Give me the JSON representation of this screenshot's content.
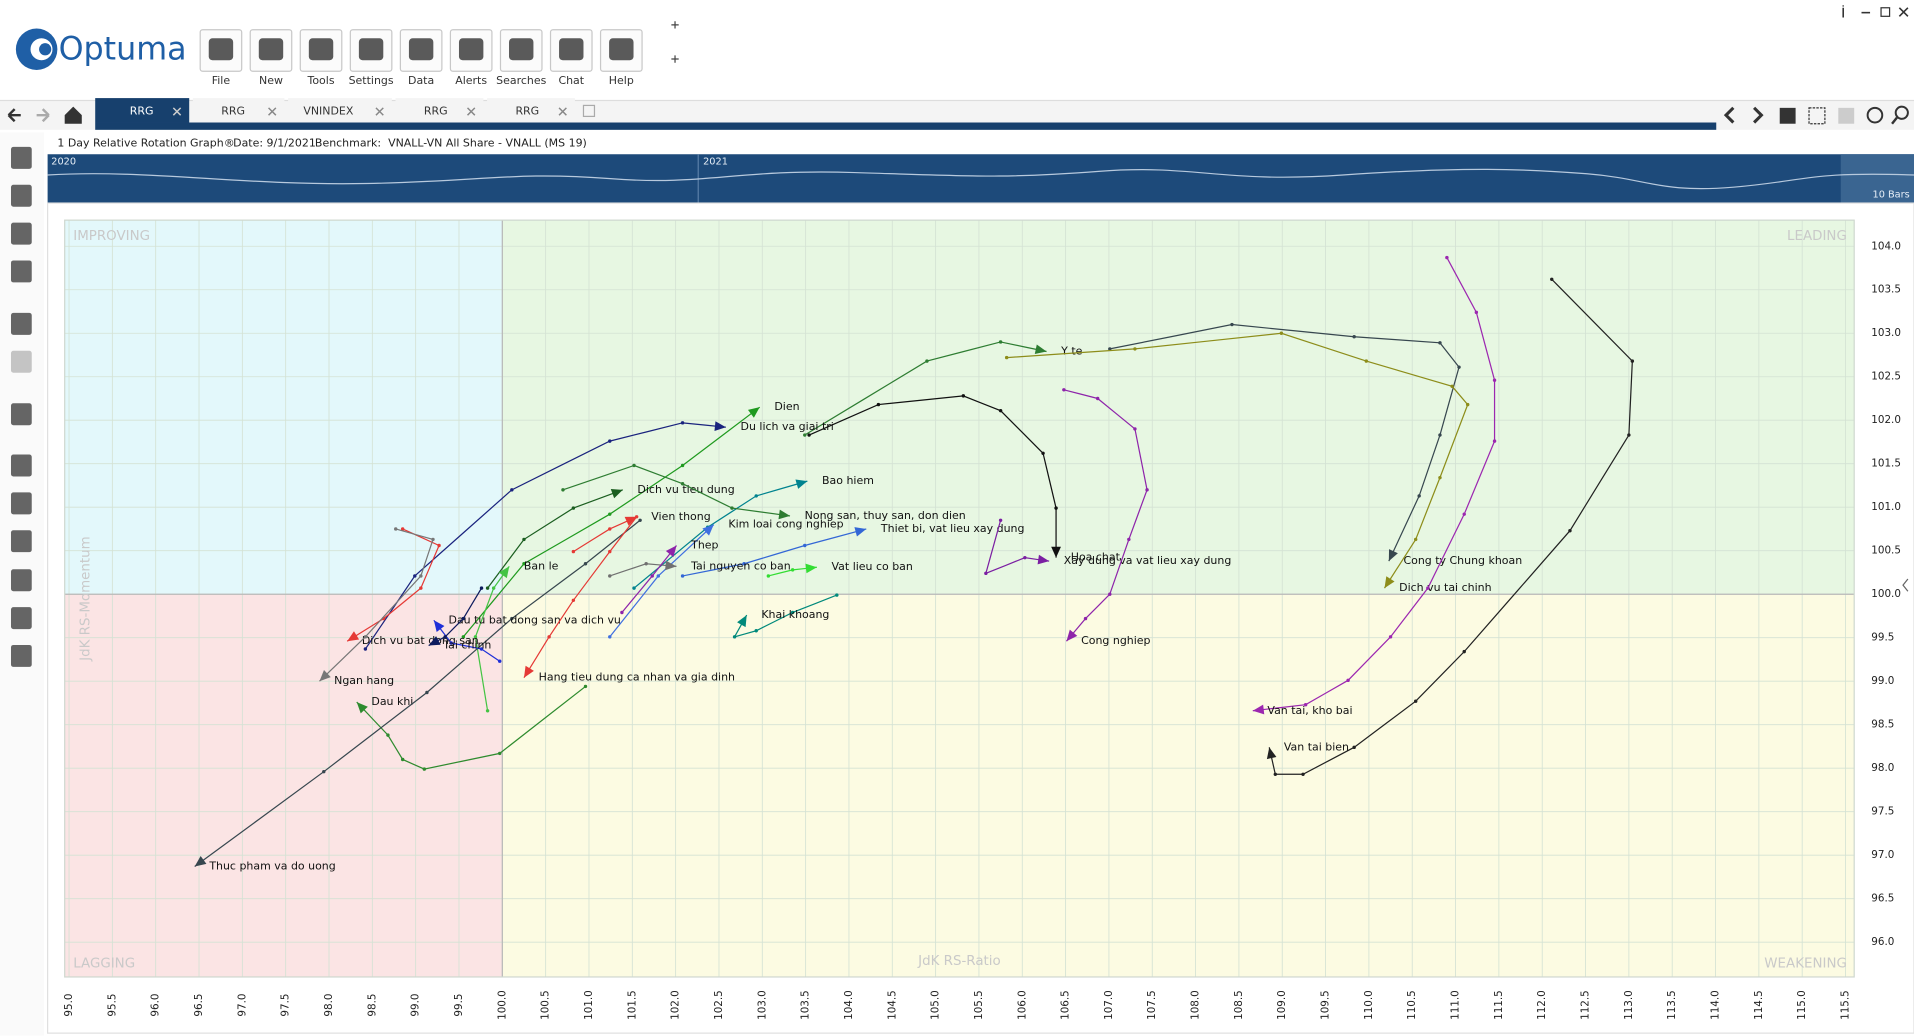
{
  "app": {
    "logo": "Optuma",
    "toolbar": [
      "File",
      "New",
      "Tools",
      "Settings",
      "Data",
      "Alerts",
      "Searches",
      "Chat",
      "Help"
    ],
    "tabs": [
      "RRG",
      "RRG",
      "VNINDEX",
      "RRG",
      "RRG"
    ],
    "info": {
      "title": "1 Day Relative Rotation Graph®",
      "date": "Date: 9/1/2021",
      "benchmark": "Benchmark:  VNALL-VN All Share - VNALL (MS 19)"
    },
    "navigator": {
      "years": [
        "2020",
        "2021"
      ],
      "bars": "10 Bars"
    }
  },
  "chart_data": {
    "type": "rrg",
    "xlabel": "JdK RS-Ratio",
    "ylabel": "JdK RS-Momentum",
    "quadrants": {
      "improving": "IMPROVING",
      "leading": "LEADING",
      "lagging": "LAGGING",
      "weakening": "WEAKENING"
    },
    "grid": true,
    "xlim": [
      94.95,
      115.6
    ],
    "ylim": [
      95.6,
      104.3
    ],
    "xticks": [
      {
        "value": 95,
        "label": "95.0"
      },
      95.5,
      {
        "value": 96,
        "label": "96.0"
      },
      96.5,
      {
        "value": 97,
        "label": "97.0"
      },
      97.5,
      {
        "value": 98,
        "label": "98.0"
      },
      98.5,
      {
        "value": 99,
        "label": "99.0"
      },
      99.5,
      {
        "value": 100,
        "label": "100.0"
      },
      100.5,
      {
        "value": 101,
        "label": "101.0"
      },
      101.5,
      {
        "value": 102,
        "label": "102.0"
      },
      102.5,
      {
        "value": 103,
        "label": "103.0"
      },
      103.5,
      {
        "value": 104,
        "label": "104.0"
      },
      104.5,
      {
        "value": 105,
        "label": "105.0"
      },
      105.5,
      {
        "value": 106,
        "label": "106.0"
      },
      106.5,
      {
        "value": 107,
        "label": "107.0"
      },
      107.5,
      {
        "value": 108,
        "label": "108.0"
      },
      108.5,
      {
        "value": 109,
        "label": "109.0"
      },
      109.5,
      {
        "value": 110,
        "label": "110.0"
      },
      110.5,
      {
        "value": 111,
        "label": "111.0"
      },
      111.5,
      {
        "value": 112,
        "label": "112.0"
      },
      112.5,
      {
        "value": 113,
        "label": "113.0"
      },
      113.5,
      {
        "value": 114,
        "label": "114.0"
      },
      114.5,
      {
        "value": 115,
        "label": "115.0"
      },
      115.5
    ],
    "yticks": [
      {
        "value": 96,
        "label": "96.0"
      },
      96.5,
      {
        "value": 97,
        "label": "97.0"
      },
      97.5,
      {
        "value": 98,
        "label": "98.0"
      },
      98.5,
      {
        "value": 99,
        "label": "99.0"
      },
      99.5,
      {
        "value": 100,
        "label": "100.0"
      },
      100.5,
      {
        "value": 101,
        "label": "101.0"
      },
      101.5,
      {
        "value": 102,
        "label": "102.0"
      },
      102.5,
      {
        "value": 103,
        "label": "103.0"
      },
      103.5,
      {
        "value": 104,
        "label": "104.0"
      }
    ],
    "series": [
      {
        "name": "Y te",
        "color": "#2e7d32",
        "x": [
          103.49,
          104.9,
          105.75,
          106.28
        ],
        "y": [
          101.83,
          102.68,
          102.9,
          102.79
        ]
      },
      {
        "name": "Dau khi",
        "color": "#2e8b2e",
        "x": [
          100.96,
          99.97,
          99.1,
          98.85,
          98.68,
          98.32
        ],
        "y": [
          98.94,
          98.17,
          97.99,
          98.1,
          98.38,
          98.76
        ]
      },
      {
        "name": "Dien",
        "color": "#1f9a1f",
        "x": [
          99.55,
          100.25,
          101.24,
          102.08,
          102.97
        ],
        "y": [
          99.51,
          100.35,
          100.92,
          101.48,
          102.15
        ]
      },
      {
        "name": "Du lich va giai tri",
        "color": "#1a237e",
        "x": [
          98.42,
          98.99,
          100.11,
          101.24,
          102.08,
          102.58
        ],
        "y": [
          99.37,
          100.21,
          101.2,
          101.76,
          101.97,
          101.92
        ]
      },
      {
        "name": "Dich vu tieu dung",
        "color": "#1b5e20",
        "x": [
          99.83,
          100.25,
          100.82,
          101.39
        ],
        "y": [
          100.07,
          100.63,
          100.99,
          101.2
        ]
      },
      {
        "name": "Bao hiem",
        "color": "#00838f",
        "x": [
          101.52,
          102.37,
          102.93,
          103.52
        ],
        "y": [
          100.07,
          100.77,
          101.13,
          101.3
        ]
      },
      {
        "name": "Nong san, thuy san, don dien",
        "color": "#2e7d32",
        "x": [
          100.7,
          101.52,
          102.08,
          102.65,
          103.32
        ],
        "y": [
          101.2,
          101.48,
          101.27,
          100.99,
          100.9
        ]
      },
      {
        "name": "Thiet bi, vat lieu xay dung",
        "color": "#3367d6",
        "x": [
          102.08,
          102.79,
          103.49,
          104.2
        ],
        "y": [
          100.21,
          100.35,
          100.56,
          100.75
        ]
      },
      {
        "name": "Vien thong",
        "color": "#e53935",
        "x": [
          100.82,
          101.24,
          101.55
        ],
        "y": [
          100.49,
          100.75,
          100.89
        ]
      },
      {
        "name": "Kim loai cong nghiep",
        "color": "#3f6fe0",
        "x": [
          101.24,
          101.8,
          102.44
        ],
        "y": [
          99.51,
          100.21,
          100.8
        ]
      },
      {
        "name": "Vat lieu co ban",
        "color": "#33dd33",
        "x": [
          103.07,
          103.35,
          103.63
        ],
        "y": [
          100.21,
          100.28,
          100.31
        ]
      },
      {
        "name": "Tai nguyen co ban",
        "color": "#707070",
        "x": [
          101.24,
          101.66,
          102.01
        ],
        "y": [
          100.21,
          100.35,
          100.32
        ]
      },
      {
        "name": "Thep",
        "color": "#8e24aa",
        "x": [
          101.38,
          101.73,
          102.01
        ],
        "y": [
          99.79,
          100.21,
          100.56
        ]
      },
      {
        "name": "Khai khoang",
        "color": "#00897b",
        "x": [
          103.86,
          103.35,
          102.93,
          102.68,
          102.82
        ],
        "y": [
          99.99,
          99.79,
          99.58,
          99.51,
          99.76
        ]
      },
      {
        "name": "Ban le",
        "color": "#43c443",
        "x": [
          99.83,
          99.69,
          99.9,
          100.08
        ],
        "y": [
          98.66,
          99.51,
          100.07,
          100.32
        ]
      },
      {
        "name": "Hoa chat",
        "color": "#111111",
        "x": [
          103.54,
          104.34,
          105.32,
          105.75,
          106.24,
          106.39,
          106.39
        ],
        "y": [
          101.83,
          102.18,
          102.28,
          102.11,
          101.62,
          100.99,
          100.42
        ]
      },
      {
        "name": "Xay dung va vat lieu xay dung",
        "color": "#7b1fa2",
        "x": [
          105.75,
          105.58,
          106.03,
          106.31
        ],
        "y": [
          100.85,
          100.24,
          100.42,
          100.38
        ]
      },
      {
        "name": "Cong nghiep",
        "color": "#8e24aa",
        "x": [
          106.48,
          106.87,
          107.3,
          107.44,
          107.23,
          107.01,
          106.73,
          106.51
        ],
        "y": [
          102.35,
          102.25,
          101.9,
          101.2,
          100.63,
          100.0,
          99.72,
          99.46
        ]
      },
      {
        "name": "Cong ty Chung khoan",
        "color": "#37474f",
        "x": [
          107.01,
          108.42,
          109.83,
          110.82,
          111.04,
          110.82,
          110.58,
          110.23
        ],
        "y": [
          102.82,
          103.1,
          102.96,
          102.89,
          102.61,
          101.83,
          101.13,
          100.38
        ]
      },
      {
        "name": "Dich vu tai chinh",
        "color": "#8d8d1a",
        "x": [
          105.82,
          107.3,
          108.99,
          109.97,
          110.96,
          111.14,
          110.82,
          110.54,
          110.18
        ],
        "y": [
          102.72,
          102.82,
          103.0,
          102.68,
          102.39,
          102.18,
          101.34,
          100.63,
          100.07
        ]
      },
      {
        "name": "Van tai, kho bai",
        "color": "#9c27b0",
        "x": [
          110.9,
          111.24,
          111.45,
          111.45,
          111.1,
          110.68,
          110.25,
          109.76,
          109.27,
          108.66
        ],
        "y": [
          103.87,
          103.24,
          102.46,
          101.76,
          100.92,
          100.07,
          99.51,
          99.01,
          98.73,
          98.66
        ]
      },
      {
        "name": "Van tai bien",
        "color": "#222222",
        "x": [
          112.11,
          113.04,
          113.0,
          112.32,
          111.1,
          110.54,
          109.83,
          109.24,
          108.92,
          108.85
        ],
        "y": [
          103.62,
          102.68,
          101.83,
          100.73,
          99.34,
          98.77,
          98.24,
          97.93,
          97.93,
          98.24
        ]
      },
      {
        "name": "Thuc pham va do uong",
        "color": "#37474f",
        "x": [
          101.59,
          100.96,
          100.11,
          99.13,
          97.94,
          96.45
        ],
        "y": [
          100.85,
          100.35,
          99.72,
          98.87,
          97.96,
          96.87
        ]
      },
      {
        "name": "Dich vu bat dong san",
        "color": "#e53935",
        "x": [
          98.85,
          99.27,
          99.06,
          98.63,
          98.21
        ],
        "y": [
          100.75,
          100.56,
          100.07,
          99.72,
          99.46
        ]
      },
      {
        "name": "Ngan hang",
        "color": "#777777",
        "x": [
          98.77,
          99.2,
          99.06,
          98.42,
          97.89
        ],
        "y": [
          100.75,
          100.63,
          100.21,
          99.51,
          99.0
        ]
      },
      {
        "name": "Dau tu bat dong san va dich vu",
        "color": "#1e2fd8",
        "x": [
          99.97,
          99.76,
          99.41,
          99.21
        ],
        "y": [
          99.23,
          99.37,
          99.44,
          99.7
        ]
      },
      {
        "name": "Tai chinh",
        "color": "#0d1b5e",
        "x": [
          99.76,
          99.55,
          99.34,
          99.15
        ],
        "y": [
          100.07,
          99.72,
          99.51,
          99.41
        ]
      },
      {
        "name": "Hang tieu dung ca nhan va gia dinh",
        "color": "#e53935",
        "x": [
          101.55,
          101.24,
          100.82,
          100.54,
          100.25
        ],
        "y": [
          100.89,
          100.49,
          99.93,
          99.51,
          99.04
        ]
      }
    ]
  }
}
